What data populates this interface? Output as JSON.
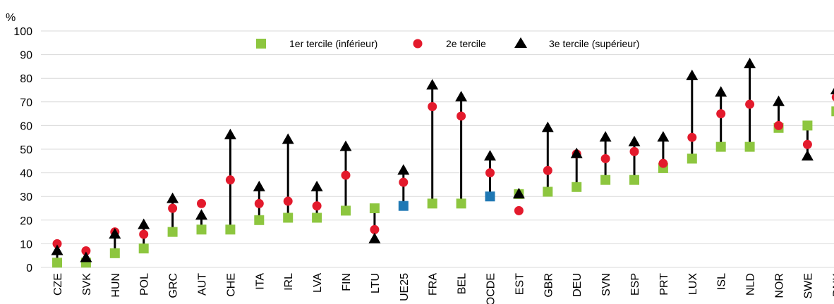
{
  "chart_data": {
    "type": "scatter",
    "ylabel": "%",
    "ylim": [
      0,
      100
    ],
    "yticks": [
      0,
      10,
      20,
      30,
      40,
      50,
      60,
      70,
      80,
      90,
      100
    ],
    "grid": true,
    "legend_position": "top-center",
    "categories": [
      "CZE",
      "SVK",
      "HUN",
      "POL",
      "GRC",
      "AUT",
      "CHE",
      "ITA",
      "IRL",
      "LVA",
      "FIN",
      "LTU",
      "UE25",
      "FRA",
      "BEL",
      "OCDE",
      "EST",
      "GBR",
      "DEU",
      "SVN",
      "ESP",
      "PRT",
      "LUX",
      "ISL",
      "NLD",
      "NOR",
      "SWE",
      "DNK"
    ],
    "highlight_categories": [
      "UE25",
      "OCDE"
    ],
    "series": [
      {
        "name": "1er tercile (inférieur)",
        "marker": "square",
        "color": "#8dc63f",
        "highlight_color": "#1f78b4",
        "values": [
          2,
          2,
          6,
          8,
          15,
          16,
          16,
          20,
          21,
          21,
          24,
          25,
          26,
          27,
          27,
          30,
          31,
          32,
          34,
          37,
          37,
          42,
          46,
          51,
          51,
          59,
          60,
          66
        ]
      },
      {
        "name": "2e tercile",
        "marker": "circle",
        "color": "#e31a2c",
        "values": [
          10,
          7,
          15,
          14,
          25,
          27,
          37,
          27,
          28,
          26,
          39,
          16,
          36,
          68,
          64,
          40,
          24,
          41,
          48,
          46,
          49,
          44,
          55,
          65,
          69,
          60,
          52,
          72
        ]
      },
      {
        "name": "3e tercile (supérieur)",
        "marker": "triangle",
        "color": "#000000",
        "values": [
          7,
          4,
          14,
          18,
          29,
          22,
          56,
          34,
          54,
          34,
          51,
          12,
          41,
          77,
          72,
          47,
          31,
          59,
          48,
          55,
          53,
          55,
          81,
          74,
          86,
          70,
          47,
          75
        ]
      }
    ]
  }
}
